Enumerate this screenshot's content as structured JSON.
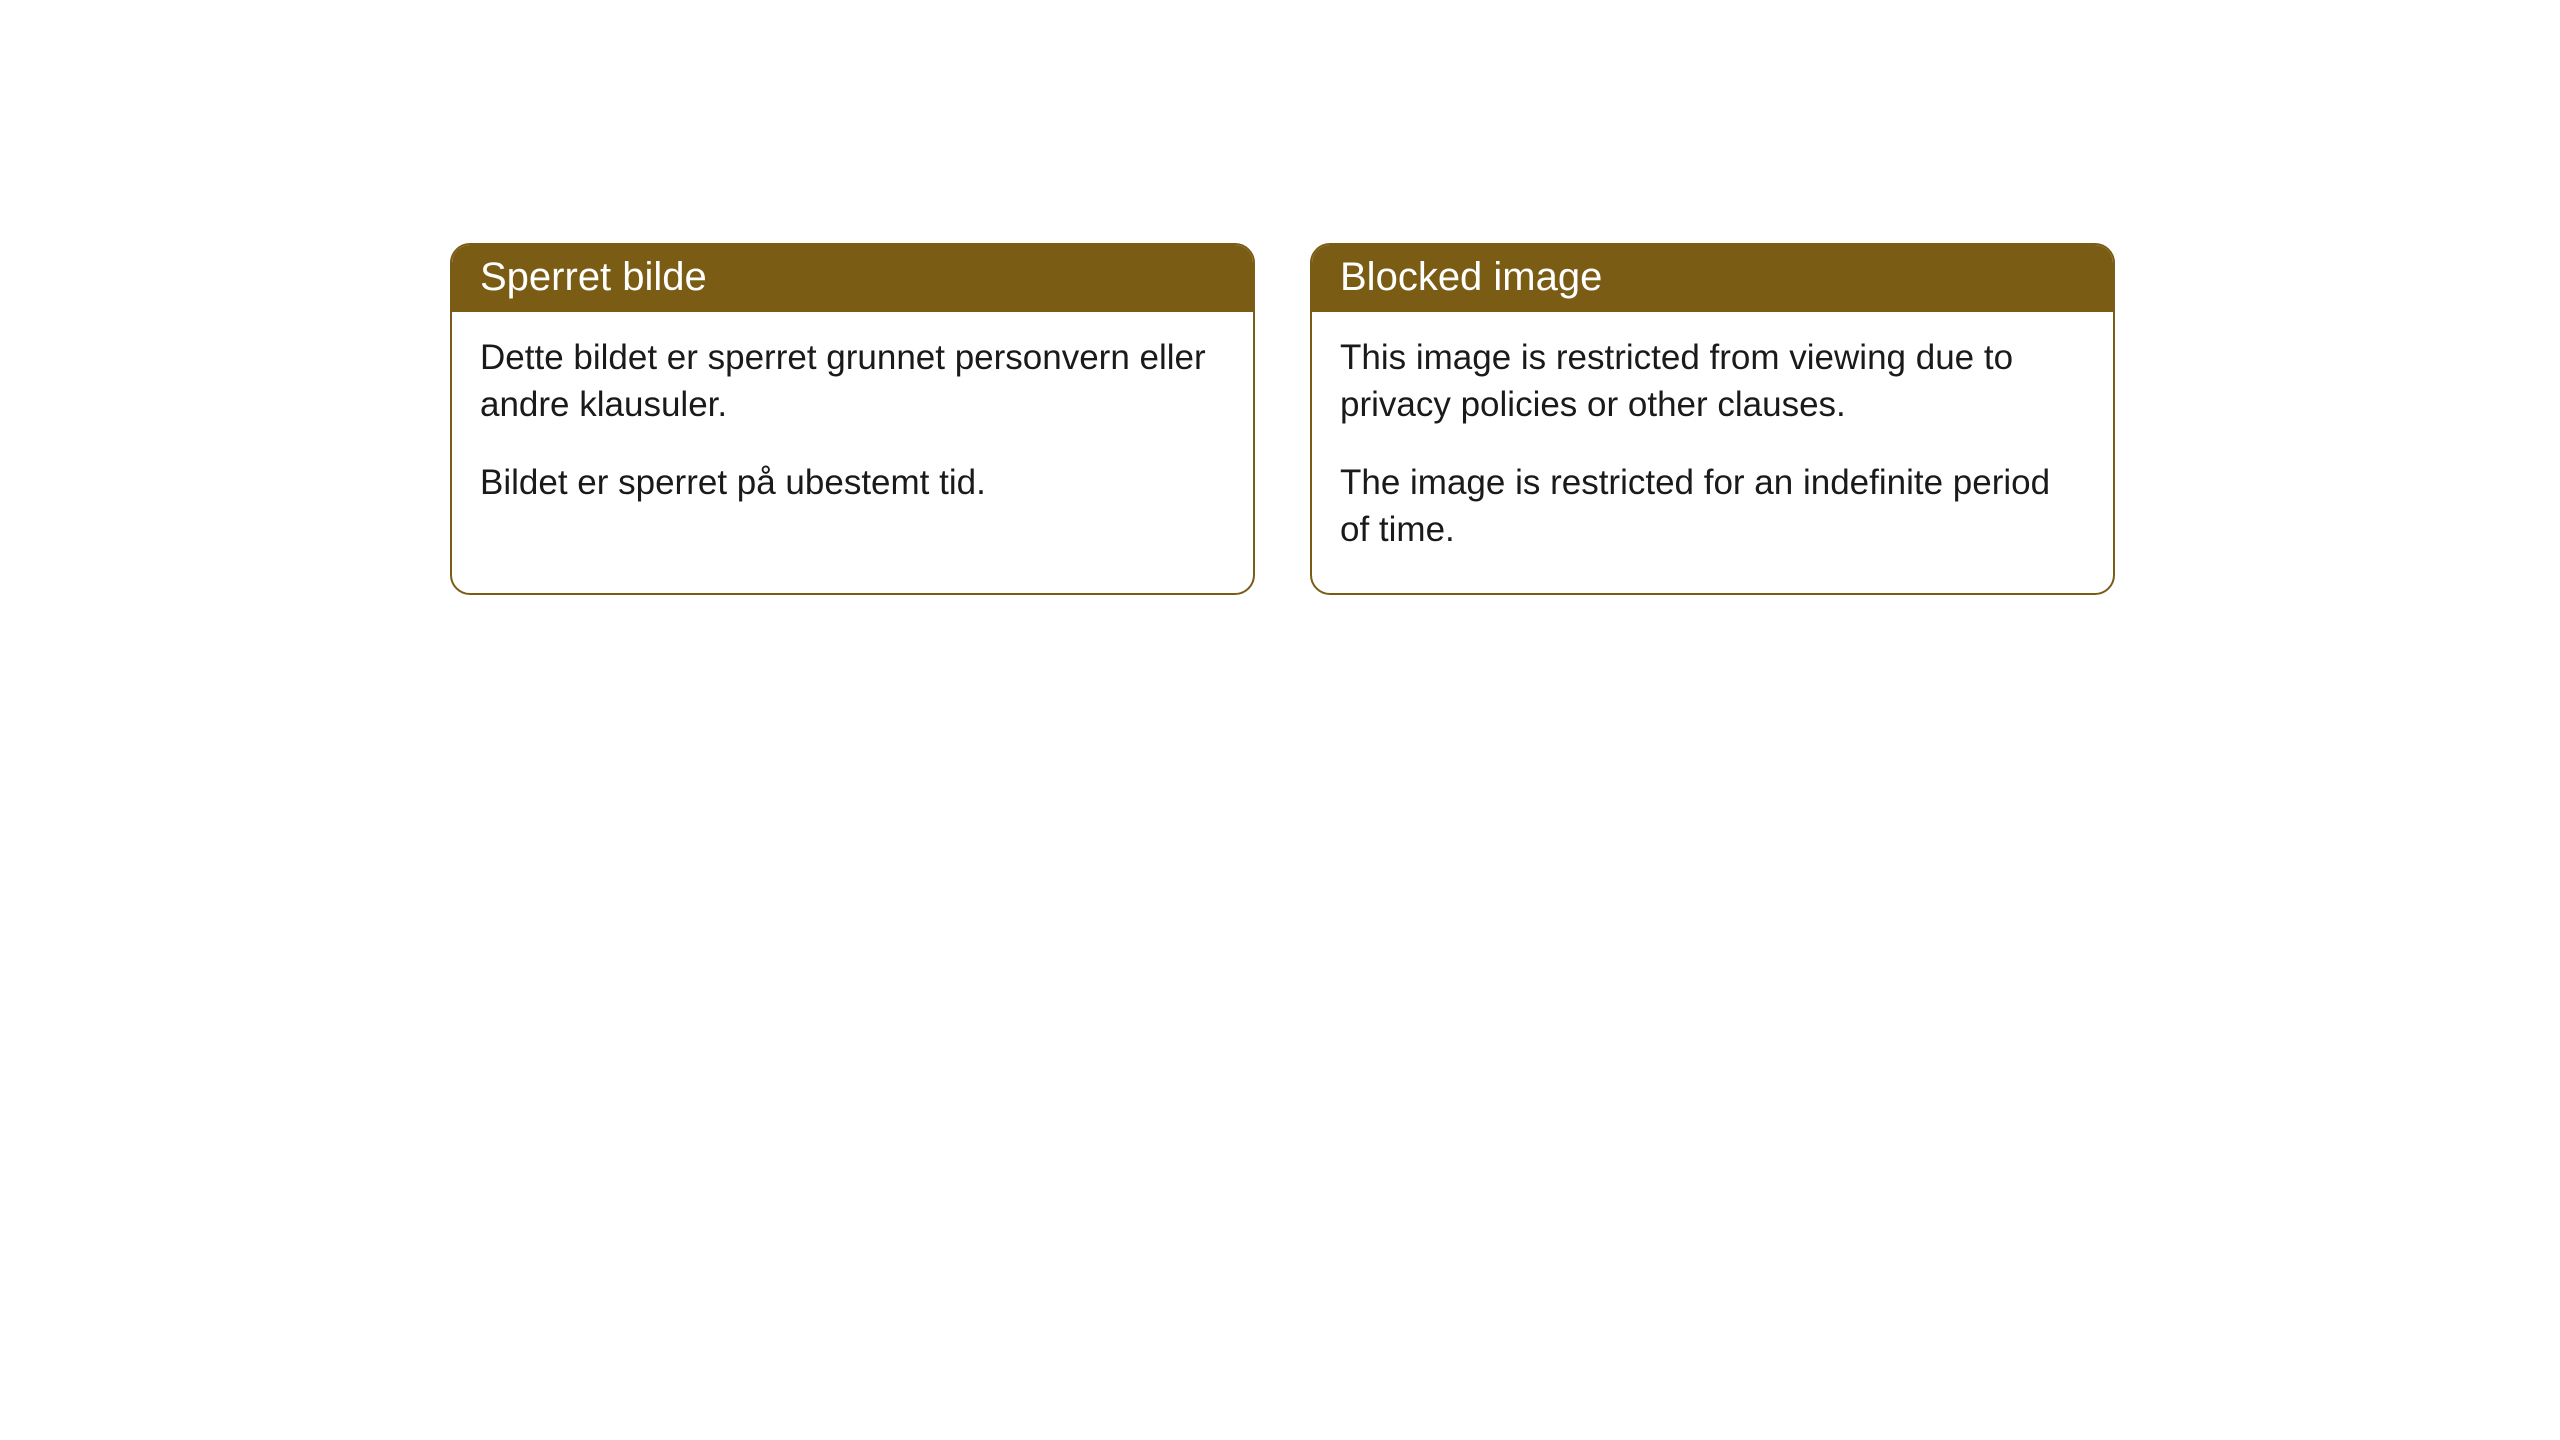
{
  "cards": [
    {
      "title": "Sperret bilde",
      "paragraph1": "Dette bildet er sperret grunnet personvern eller andre klausuler.",
      "paragraph2": "Bildet er sperret på ubestemt tid."
    },
    {
      "title": "Blocked image",
      "paragraph1": "This image is restricted from viewing due to privacy policies or other clauses.",
      "paragraph2": "The image is restricted for an indefinite period of time."
    }
  ],
  "style": {
    "header_background": "#7a5c14",
    "header_text_color": "#ffffff",
    "border_color": "#7a5c14",
    "body_background": "#ffffff",
    "body_text_color": "#1a1a1a",
    "border_radius": 20,
    "header_fontsize": 40,
    "body_fontsize": 35
  }
}
